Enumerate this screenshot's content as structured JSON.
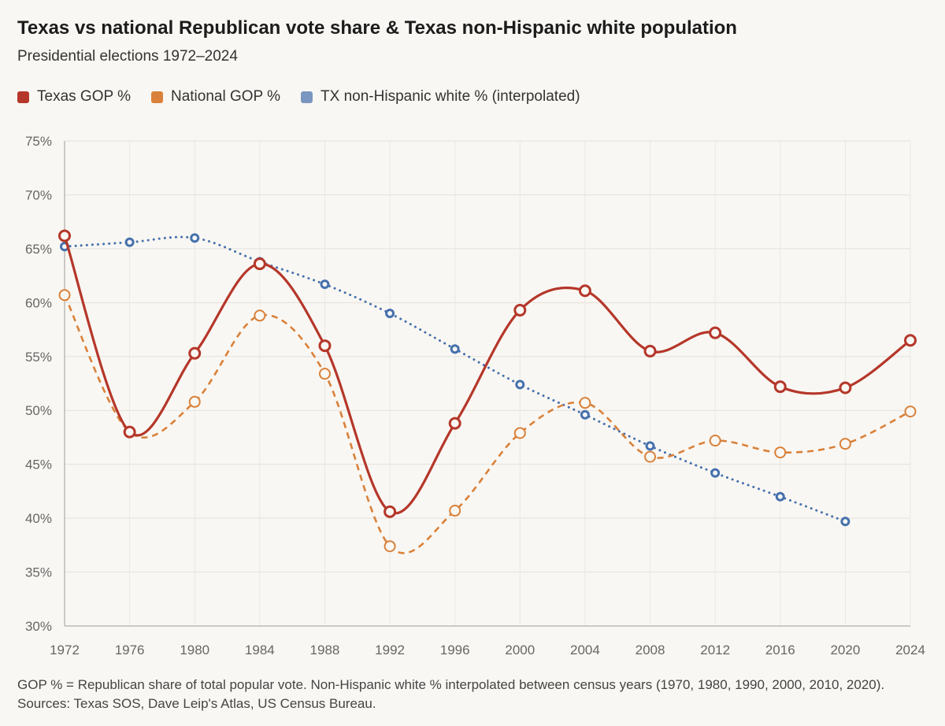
{
  "chart_data": {
    "type": "line",
    "title": "Texas vs national Republican vote share & Texas non-Hispanic white population",
    "subtitle": "Presidential elections 1972–2024",
    "xlabel": "",
    "ylabel": "",
    "ylim": [
      30,
      75
    ],
    "yticks": [
      30,
      35,
      40,
      45,
      50,
      55,
      60,
      65,
      70,
      75
    ],
    "ytick_labels": [
      "30%",
      "35%",
      "40%",
      "45%",
      "50%",
      "55%",
      "60%",
      "65%",
      "70%",
      "75%"
    ],
    "x": [
      1972,
      1976,
      1980,
      1984,
      1988,
      1992,
      1996,
      2000,
      2004,
      2008,
      2012,
      2016,
      2020,
      2024
    ],
    "x_labels": [
      "1972",
      "1976",
      "1980",
      "1984",
      "1988",
      "1992",
      "1996",
      "2000",
      "2004",
      "2008",
      "2012",
      "2016",
      "2020",
      "2024"
    ],
    "grid": true,
    "legend_position": "top-left",
    "series": [
      {
        "name": "Texas GOP %",
        "color": "#b5372a",
        "style": "solid",
        "values": [
          66.2,
          48.0,
          55.3,
          63.6,
          56.0,
          40.6,
          48.8,
          59.3,
          61.1,
          55.5,
          57.2,
          52.2,
          52.1,
          56.5
        ]
      },
      {
        "name": "National GOP %",
        "color": "#d9813a",
        "style": "dashed",
        "values": [
          60.7,
          48.0,
          50.8,
          58.8,
          53.4,
          37.4,
          40.7,
          47.9,
          50.7,
          45.7,
          47.2,
          46.1,
          46.9,
          49.9
        ]
      },
      {
        "name": "TX non-Hispanic white % (interpolated)",
        "color": "#4671ad",
        "legend_color": "#7a96c0",
        "style": "dotted",
        "values": [
          65.2,
          65.6,
          66.0,
          63.8,
          61.7,
          59.0,
          55.7,
          52.4,
          49.6,
          46.7,
          44.2,
          42.0,
          39.7,
          null
        ]
      }
    ],
    "footnote": "GOP % = Republican share of total popular vote. Non-Hispanic white % interpolated between census years (1970, 1980, 1990, 2000, 2010, 2020). Sources: Texas SOS, Dave Leip's Atlas, US Census Bureau."
  }
}
